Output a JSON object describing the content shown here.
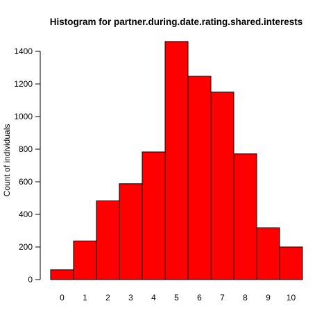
{
  "chart_data": {
    "type": "bar",
    "title": "Histogram for partner.during.date.rating.shared.interests",
    "xlabel": "",
    "ylabel": "Count of individuals",
    "categories": [
      "0",
      "1",
      "2",
      "3",
      "4",
      "5",
      "6",
      "7",
      "8",
      "9",
      "10"
    ],
    "values": [
      60,
      237,
      483,
      588,
      783,
      1460,
      1247,
      1150,
      771,
      318,
      200
    ],
    "yticks": [
      0,
      200,
      400,
      600,
      800,
      1000,
      1200,
      1400
    ],
    "ylim": [
      0,
      1460
    ],
    "grid": false,
    "legend": "none",
    "bar_color": "#ff0000",
    "edge_color": "#000000"
  }
}
